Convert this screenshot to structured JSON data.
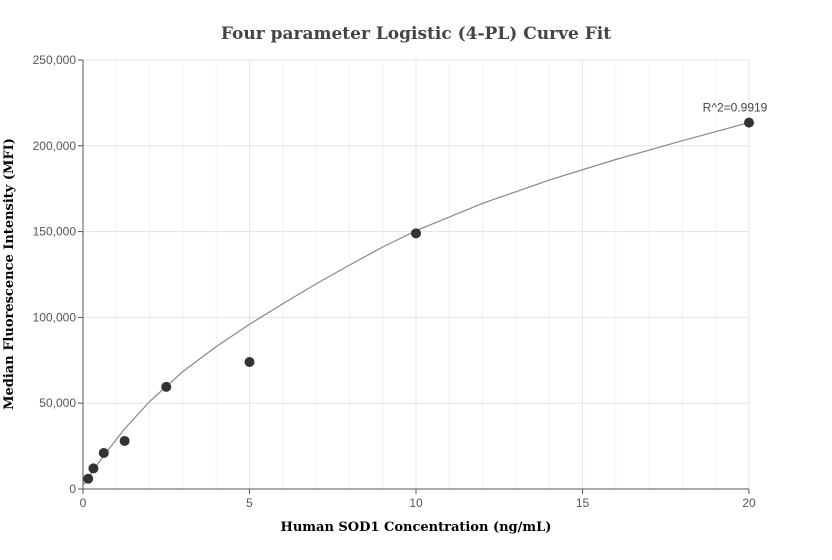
{
  "chart_data": {
    "type": "scatter",
    "title": "Four parameter Logistic (4-PL) Curve Fit",
    "xlabel": "Human SOD1 Concentration (ng/mL)",
    "ylabel": "Median Fluorescence Intensity (MFI)",
    "xlim": [
      0,
      20
    ],
    "ylim": [
      0,
      250000
    ],
    "x_ticks": [
      0,
      5,
      10,
      15,
      20
    ],
    "x_tick_labels": [
      "0",
      "5",
      "10",
      "15",
      "20"
    ],
    "y_ticks": [
      0,
      50000,
      100000,
      150000,
      200000,
      250000
    ],
    "y_tick_labels": [
      "0",
      "50,000",
      "100,000",
      "150,000",
      "200,000",
      "250,000"
    ],
    "grid": true,
    "series": [
      {
        "type": "scatter",
        "x": [
          0.156,
          0.313,
          0.625,
          1.25,
          2.5,
          5,
          10,
          20
        ],
        "y": [
          6000,
          12000,
          21000,
          28000,
          59500,
          74000,
          149000,
          213500
        ],
        "color": "#333333"
      },
      {
        "type": "line",
        "x": [
          0,
          0.156,
          0.313,
          0.625,
          1.25,
          2,
          3,
          4,
          5,
          6,
          7,
          8,
          9,
          10,
          12,
          14,
          16,
          18,
          20
        ],
        "y": [
          2000,
          6500,
          11000,
          19500,
          35000,
          51000,
          68500,
          83000,
          96000,
          108000,
          119500,
          130500,
          141000,
          150500,
          166500,
          180000,
          192000,
          203000,
          213500
        ],
        "color": "#888888"
      }
    ],
    "annotations": [
      {
        "text": "R^2=0.9919",
        "x": 20,
        "y": 213500
      }
    ]
  }
}
